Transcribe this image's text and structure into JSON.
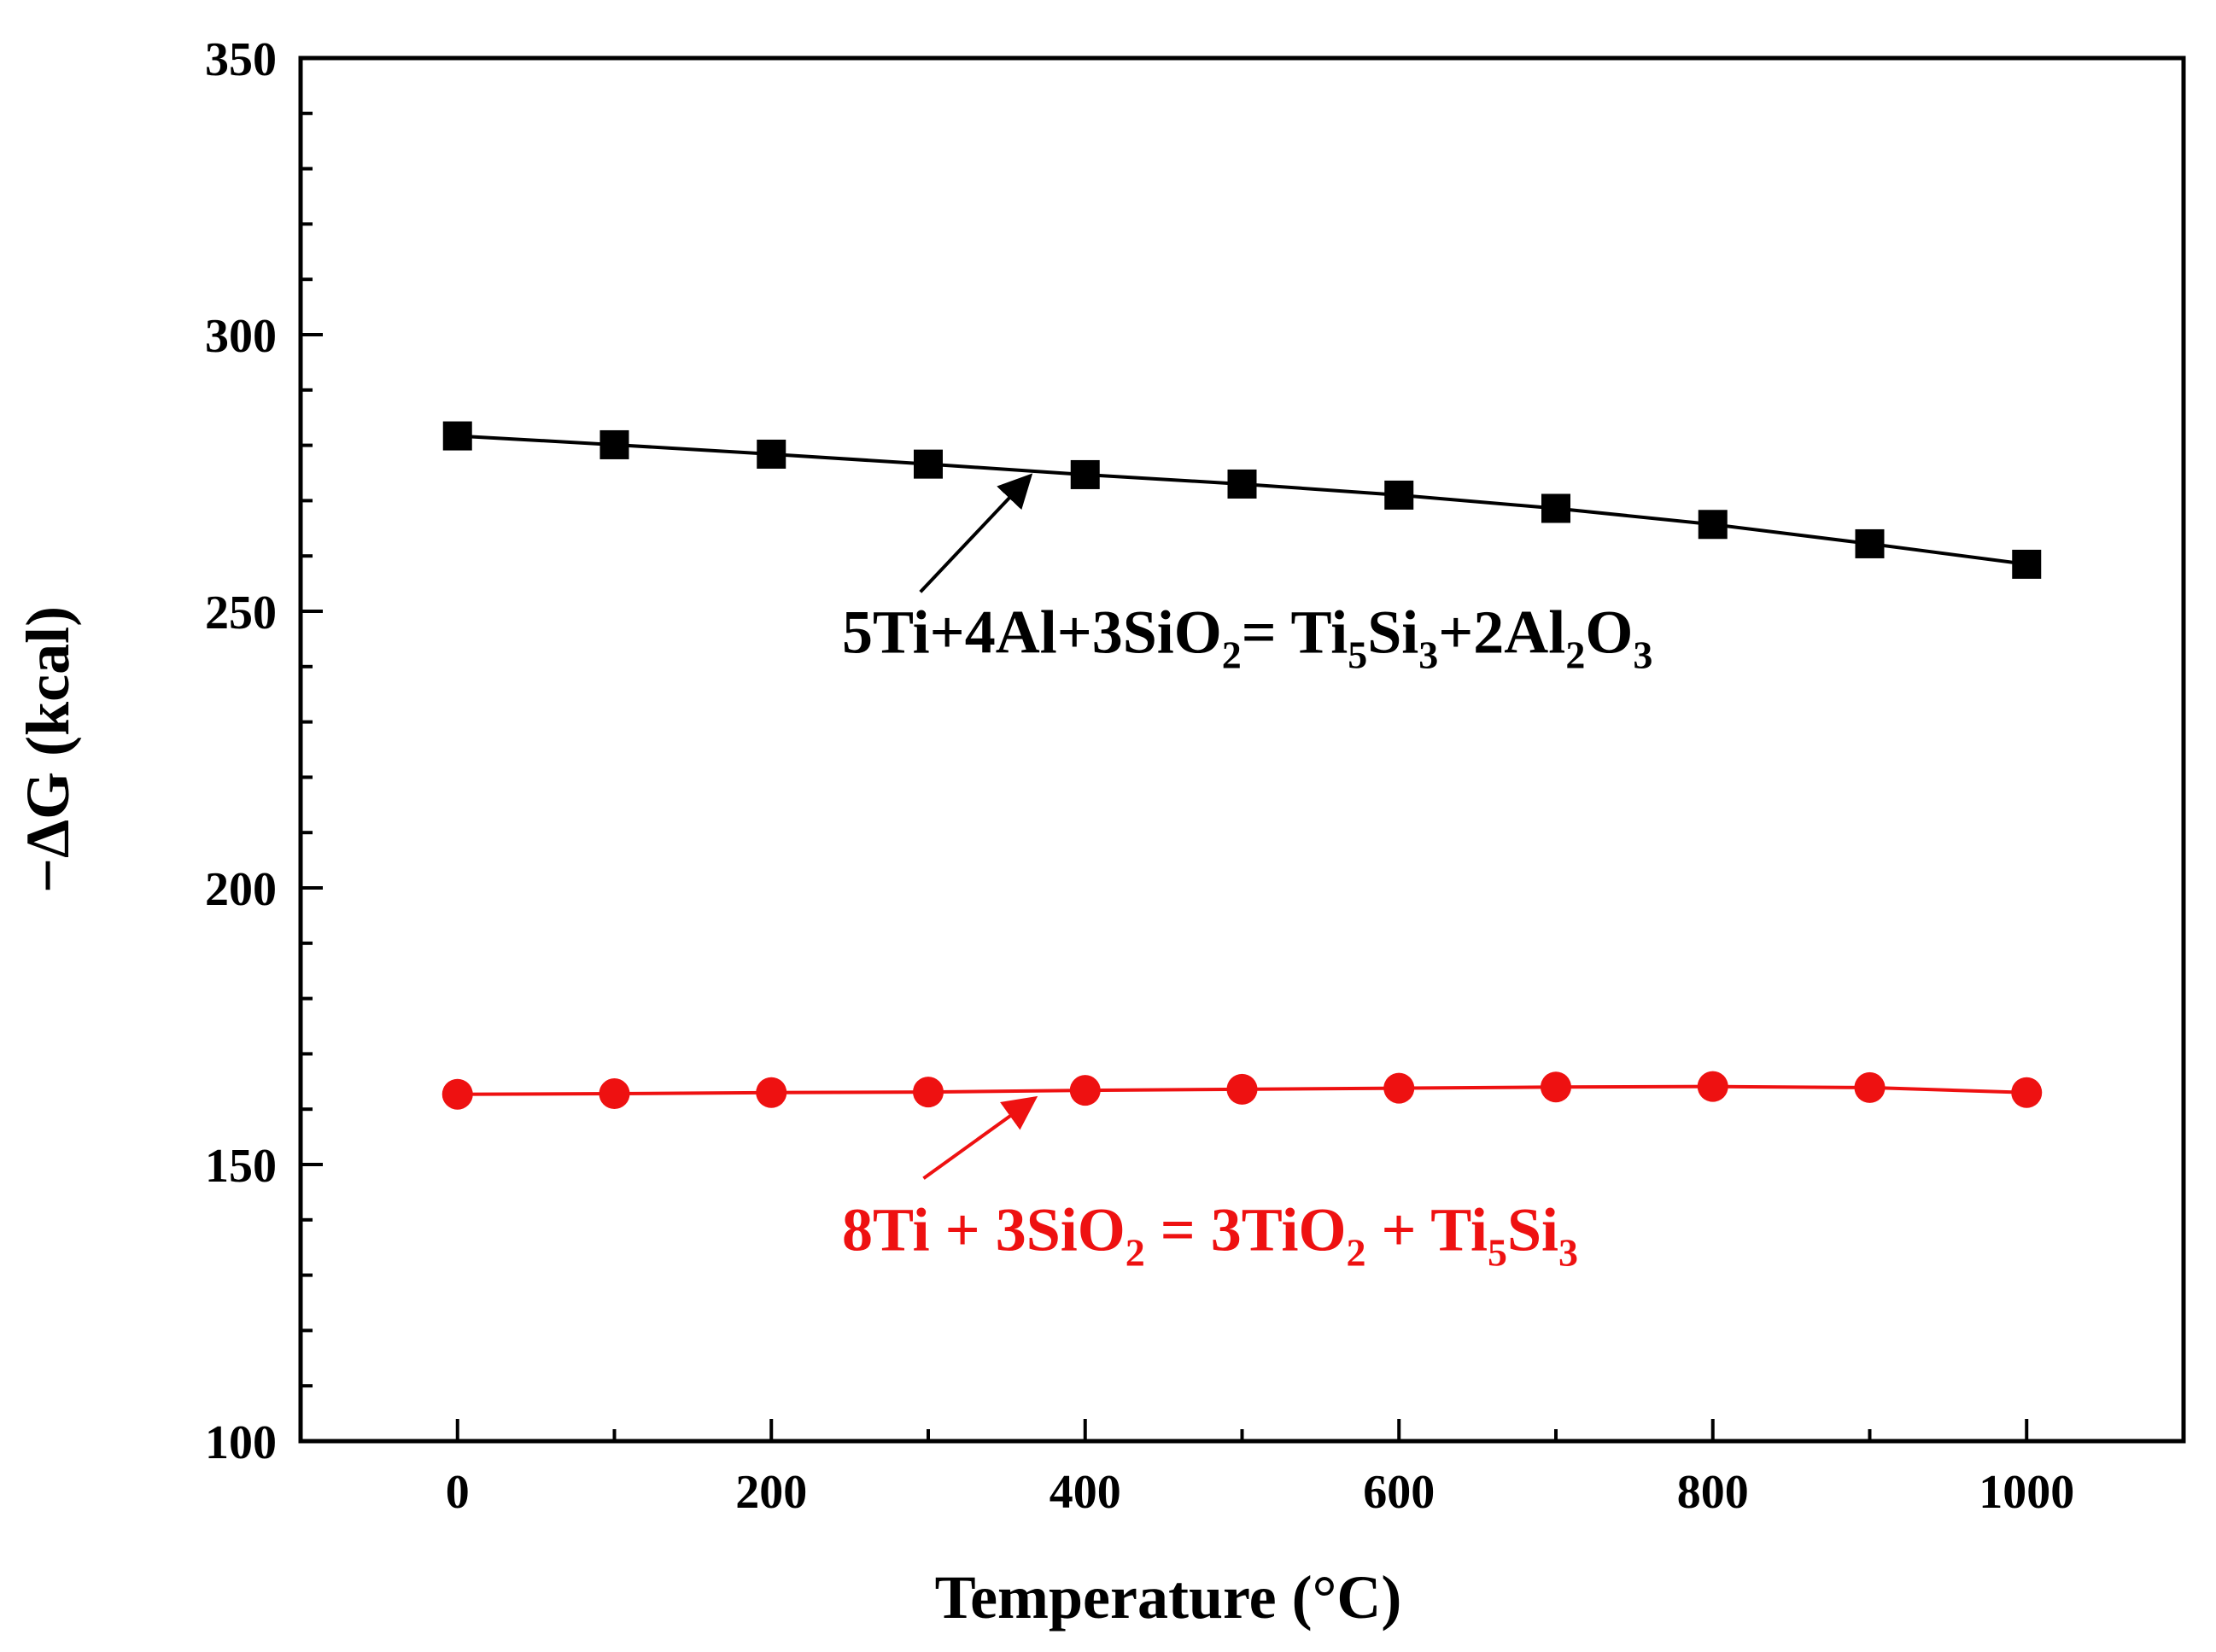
{
  "chart_data": {
    "type": "line",
    "title": "",
    "xlabel": "Temperature (°C)",
    "ylabel": "−ΔG (kcal)",
    "xlim": [
      -100,
      1100
    ],
    "ylim": [
      100,
      350
    ],
    "x": [
      0,
      100,
      200,
      300,
      400,
      500,
      600,
      700,
      800,
      900,
      1000
    ],
    "x_ticks": [
      0,
      200,
      400,
      600,
      800,
      1000
    ],
    "x_tick_labels": [
      "0",
      "200",
      "400",
      "600",
      "800",
      "1000"
    ],
    "y_ticks": [
      100,
      150,
      200,
      250,
      300,
      350
    ],
    "y_tick_labels": [
      "100",
      "150",
      "200",
      "250",
      "300",
      "350"
    ],
    "grid": false,
    "series": [
      {
        "name": "5Ti+4Al+3SiO2= Ti5Si3+2Al2O3",
        "color": "#000000",
        "marker": "square",
        "values": [
          281.7,
          280.1,
          278.4,
          276.6,
          274.7,
          273.0,
          271.0,
          268.6,
          265.7,
          262.2,
          258.5
        ]
      },
      {
        "name": "8Ti + 3SiO2 = 3TiO2 + Ti5Si3",
        "color": "#ee1111",
        "marker": "circle",
        "values": [
          162.7,
          162.8,
          163.0,
          163.1,
          163.4,
          163.6,
          163.8,
          164.0,
          164.1,
          163.9,
          163.0
        ]
      }
    ],
    "annotations": [
      {
        "series_index": 0,
        "color": "#000000",
        "parts": [
          {
            "t": "5Ti+4Al+3SiO",
            "sub": false
          },
          {
            "t": "2",
            "sub": true
          },
          {
            "t": "= Ti",
            "sub": false
          },
          {
            "t": "5",
            "sub": true
          },
          {
            "t": "Si",
            "sub": false
          },
          {
            "t": "3",
            "sub": true
          },
          {
            "t": "+2Al",
            "sub": false
          },
          {
            "t": "2",
            "sub": true
          },
          {
            "t": "O",
            "sub": false
          },
          {
            "t": "3",
            "sub": true
          }
        ],
        "text_x": 245,
        "text_y": 242.5,
        "arrow_from": [
          295,
          253.5
        ],
        "arrow_to": [
          365,
          274.5
        ]
      },
      {
        "series_index": 1,
        "color": "#ee1111",
        "parts": [
          {
            "t": "8Ti + 3SiO",
            "sub": false
          },
          {
            "t": "2",
            "sub": true
          },
          {
            "t": " = 3TiO",
            "sub": false
          },
          {
            "t": "2",
            "sub": true
          },
          {
            "t": " + Ti",
            "sub": false
          },
          {
            "t": "5",
            "sub": true
          },
          {
            "t": "Si",
            "sub": false
          },
          {
            "t": "3",
            "sub": true
          }
        ],
        "text_x": 245,
        "text_y": 134.5,
        "arrow_from": [
          297,
          147.5
        ],
        "arrow_to": [
          368,
          162
        ]
      }
    ]
  }
}
